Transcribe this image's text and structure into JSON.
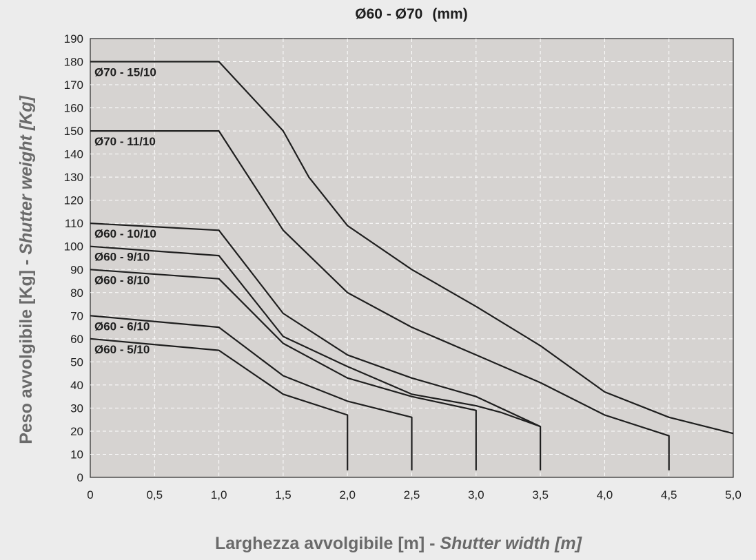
{
  "chart_data": {
    "type": "line",
    "title": "Ø60 - Ø70",
    "title_unit": "(mm)",
    "xlabel": "Larghezza avvolgibile [m] - ",
    "xlabel_en": "Shutter width [m]",
    "ylabel": "Peso avvolgibile [Kg] - ",
    "ylabel_en": "Shutter weight [Kg]",
    "xlim": [
      0,
      5
    ],
    "ylim": [
      0,
      190
    ],
    "x_ticks": [
      "0",
      "0,5",
      "1,0",
      "1,5",
      "2,0",
      "2,5",
      "3,0",
      "3,5",
      "4,0",
      "4,5",
      "5,0"
    ],
    "y_ticks": [
      "0",
      "10",
      "20",
      "30",
      "40",
      "50",
      "60",
      "70",
      "80",
      "90",
      "100",
      "110",
      "120",
      "130",
      "140",
      "150",
      "160",
      "170",
      "180",
      "190"
    ],
    "grid": true,
    "plot_background": "#d6d3d1",
    "line_color": "#1e1e1e",
    "series": [
      {
        "name": "Ø70 - 15/10",
        "x": [
          0,
          1.0,
          1.5,
          1.7,
          2.0,
          2.5,
          3.0,
          3.5,
          4.0,
          4.5,
          5.0
        ],
        "y": [
          180,
          180,
          150,
          130,
          109,
          90,
          74,
          57,
          37,
          26,
          19
        ]
      },
      {
        "name": "Ø70 - 11/10",
        "x": [
          0,
          1.0,
          1.5,
          2.0,
          2.5,
          3.0,
          3.5,
          4.0,
          4.5,
          4.5
        ],
        "y": [
          150,
          150,
          107,
          80,
          65,
          53,
          41,
          27,
          18,
          3
        ]
      },
      {
        "name": "Ø60 - 10/10",
        "x": [
          0,
          1.0,
          1.5,
          2.0,
          2.5,
          3.0,
          3.5,
          3.5
        ],
        "y": [
          110,
          107,
          71,
          53,
          43,
          35,
          22,
          3
        ]
      },
      {
        "name": "Ø60 - 9/10",
        "x": [
          0,
          1.0,
          1.5,
          2.0,
          2.5,
          3.0,
          3.2,
          3.5
        ],
        "y": [
          100,
          96,
          61,
          48,
          36,
          31,
          28,
          22
        ]
      },
      {
        "name": "Ø60 - 8/10",
        "x": [
          0,
          1.0,
          1.5,
          2.0,
          2.5,
          3.0,
          3.0
        ],
        "y": [
          90,
          86,
          58,
          43,
          35,
          29,
          3
        ]
      },
      {
        "name": "Ø60 - 6/10",
        "x": [
          0,
          1.0,
          1.5,
          2.0,
          2.5,
          2.5
        ],
        "y": [
          70,
          65,
          44,
          33,
          26,
          3
        ]
      },
      {
        "name": "Ø60 - 5/10",
        "x": [
          0,
          1.0,
          1.5,
          2.0,
          2.0
        ],
        "y": [
          60,
          55,
          36,
          27,
          3
        ]
      }
    ]
  }
}
